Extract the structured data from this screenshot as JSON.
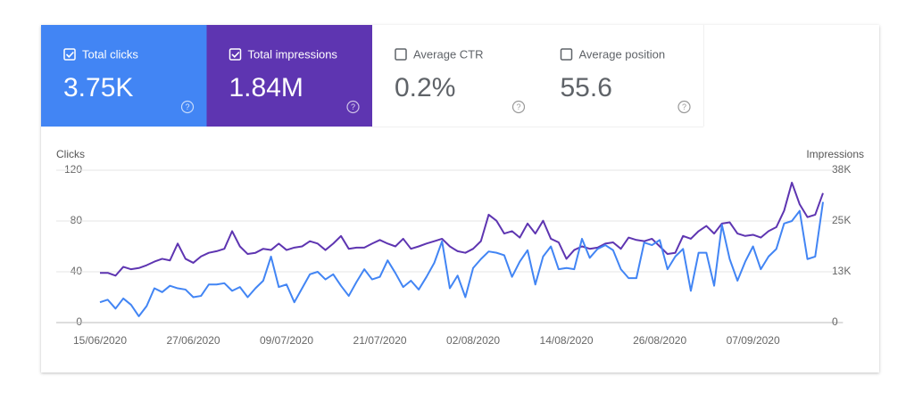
{
  "tiles": [
    {
      "label": "Total clicks",
      "value": "3.75K",
      "checked": true,
      "color": "#4285f4"
    },
    {
      "label": "Total impressions",
      "value": "1.84M",
      "checked": true,
      "color": "#5e35b1"
    },
    {
      "label": "Average CTR",
      "value": "0.2%",
      "checked": false,
      "color": "#ffffff"
    },
    {
      "label": "Average position",
      "value": "55.6",
      "checked": false,
      "color": "#ffffff"
    }
  ],
  "chart_data": {
    "type": "line",
    "ylabel": "Clicks",
    "y2label": "Impressions",
    "categories": [
      "15/06/2020",
      null,
      null,
      null,
      null,
      null,
      null,
      null,
      null,
      null,
      null,
      null,
      "27/06/2020",
      null,
      null,
      null,
      null,
      null,
      null,
      null,
      null,
      null,
      null,
      null,
      "09/07/2020",
      null,
      null,
      null,
      null,
      null,
      null,
      null,
      null,
      null,
      null,
      null,
      "21/07/2020",
      null,
      null,
      null,
      null,
      null,
      null,
      null,
      null,
      null,
      null,
      null,
      "02/08/2020",
      null,
      null,
      null,
      null,
      null,
      null,
      null,
      null,
      null,
      null,
      null,
      "14/08/2020",
      null,
      null,
      null,
      null,
      null,
      null,
      null,
      null,
      null,
      null,
      null,
      "26/08/2020",
      null,
      null,
      null,
      null,
      null,
      null,
      null,
      null,
      null,
      null,
      null,
      "07/09/2020",
      null,
      null,
      null,
      null,
      null,
      null,
      null,
      null,
      null
    ],
    "ylim": [
      0,
      120
    ],
    "yticks": [
      0,
      40,
      80,
      120
    ],
    "y2lim": [
      0,
      38000
    ],
    "y2ticks": [
      {
        "value": 0,
        "label": "0"
      },
      {
        "value": 12667,
        "label": "13K"
      },
      {
        "value": 25333,
        "label": "25K"
      },
      {
        "value": 38000,
        "label": "38K"
      }
    ],
    "grid": true,
    "series": [
      {
        "name": "Total clicks",
        "color": "#4285f4",
        "values": [
          16,
          18,
          11,
          19,
          14,
          5,
          13,
          27,
          24,
          29,
          27,
          26,
          20,
          21,
          30,
          30,
          31,
          25,
          28,
          20,
          27,
          33,
          52,
          28,
          30,
          16,
          27,
          38,
          40,
          34,
          38,
          29,
          21,
          32,
          42,
          34,
          36,
          49,
          39,
          28,
          33,
          26,
          36,
          47,
          64,
          27,
          37,
          20,
          43,
          50,
          56,
          55,
          53,
          36,
          48,
          57,
          30,
          52,
          60,
          42,
          43,
          42,
          66,
          51,
          58,
          61,
          57,
          42,
          35,
          35,
          63,
          61,
          65,
          42,
          52,
          58,
          25,
          55,
          55,
          29,
          77,
          50,
          33,
          48,
          60,
          42,
          52,
          58,
          78,
          80,
          88,
          50,
          52,
          95
        ]
      },
      {
        "name": "Total impressions",
        "color": "#5e35b1",
        "axis": "y2",
        "values": [
          12400,
          12400,
          11700,
          13900,
          13300,
          13600,
          14300,
          15200,
          15900,
          15500,
          19700,
          15900,
          14900,
          16500,
          17400,
          17800,
          18400,
          22800,
          19000,
          17100,
          17400,
          18400,
          18100,
          19700,
          18100,
          18700,
          19000,
          20300,
          19700,
          18100,
          19700,
          21600,
          18400,
          18700,
          18700,
          19700,
          20600,
          19700,
          19000,
          20900,
          18400,
          19000,
          19700,
          20300,
          20900,
          19000,
          17800,
          17400,
          18400,
          20300,
          26900,
          25400,
          22200,
          22800,
          21200,
          24700,
          22200,
          25400,
          20900,
          20000,
          15900,
          18100,
          19000,
          18400,
          18700,
          19700,
          20000,
          18400,
          21200,
          20600,
          20300,
          20900,
          19000,
          17100,
          17400,
          21600,
          20900,
          22800,
          24100,
          22200,
          24700,
          25000,
          22200,
          21600,
          21900,
          21200,
          22800,
          23800,
          27900,
          34900,
          29500,
          26300,
          26900,
          32300
        ]
      }
    ]
  }
}
